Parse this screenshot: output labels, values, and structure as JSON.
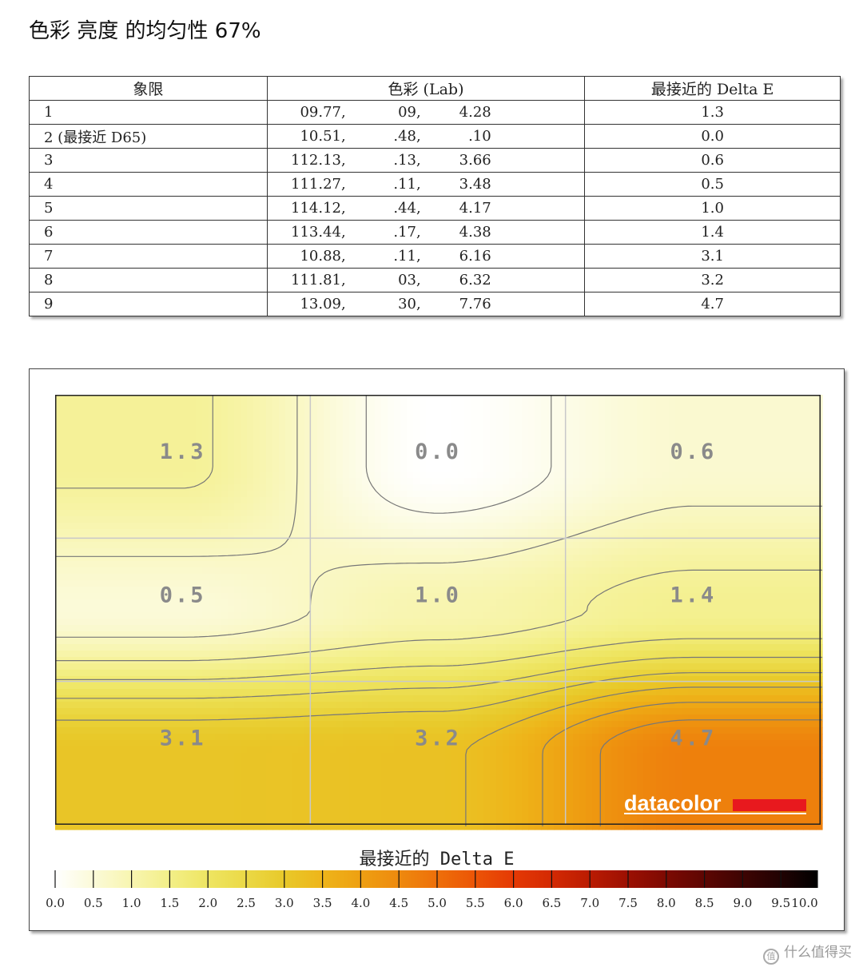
{
  "page": {
    "title": "色彩 亮度 的均匀性 67%"
  },
  "table": {
    "headers": [
      "象限",
      "色彩 (Lab)",
      "最接近的 Delta E"
    ],
    "rows": [
      {
        "quadrant": "1",
        "L": "09.77,",
        "a": "09,",
        "b": "4.28",
        "delta_e": "1.3"
      },
      {
        "quadrant": "2 (最接近 D65)",
        "L": "10.51,",
        "a": ".48,",
        "b": ".10",
        "delta_e": "0.0"
      },
      {
        "quadrant": "3",
        "L": "112.13,",
        "a": ".13,",
        "b": "3.66",
        "delta_e": "0.6"
      },
      {
        "quadrant": "4",
        "L": "111.27,",
        "a": ".11,",
        "b": "3.48",
        "delta_e": "0.5"
      },
      {
        "quadrant": "5",
        "L": "114.12,",
        "a": ".44,",
        "b": "4.17",
        "delta_e": "1.0"
      },
      {
        "quadrant": "6",
        "L": "113.44,",
        "a": ".17,",
        "b": "4.38",
        "delta_e": "1.4"
      },
      {
        "quadrant": "7",
        "L": "10.88,",
        "a": ".11,",
        "b": "6.16",
        "delta_e": "3.1"
      },
      {
        "quadrant": "8",
        "L": "111.81,",
        "a": "03,",
        "b": "6.32",
        "delta_e": "3.2"
      },
      {
        "quadrant": "9",
        "L": "13.09,",
        "a": "30,",
        "b": "7.76",
        "delta_e": "4.7"
      }
    ]
  },
  "chart_data": {
    "type": "heatmap",
    "grid": {
      "rows": 3,
      "cols": 3
    },
    "values": [
      [
        1.3,
        0.0,
        0.6
      ],
      [
        0.5,
        1.0,
        1.4
      ],
      [
        3.1,
        3.2,
        4.7
      ]
    ],
    "labels": [
      [
        "1.3",
        "0.0",
        "0.6"
      ],
      [
        "0.5",
        "1.0",
        "1.4"
      ],
      [
        "3.1",
        "3.2",
        "4.7"
      ]
    ],
    "colorbar": {
      "title": "最接近的 Delta E",
      "min": 0.0,
      "max": 10.0,
      "step": 0.5,
      "tick_labels": [
        "0.0",
        "0.5",
        "1.0",
        "1.5",
        "2.0",
        "2.5",
        "3.0",
        "3.5",
        "4.0",
        "4.5",
        "5.0",
        "5.5",
        "6.0",
        "6.5",
        "7.0",
        "7.5",
        "8.0",
        "8.5",
        "9.0",
        "9.5",
        "10.0"
      ],
      "colors": [
        "#ffffff",
        "#fbfad8",
        "#f8f5b0",
        "#f3ef88",
        "#eee562",
        "#ebd946",
        "#e8c92a",
        "#eeb51a",
        "#eea012",
        "#ee8a0e",
        "#ee700a",
        "#ec5506",
        "#e53a04",
        "#d42a03",
        "#bb1c02",
        "#9d1002",
        "#7e0a02",
        "#5e0602",
        "#3f0402",
        "#220202",
        "#000000"
      ],
      "grid": true
    },
    "brand_logo": "datacolor",
    "brand_color": "#e8191e"
  },
  "watermark": {
    "icon": "zhi-icon",
    "text": "什么值得买"
  }
}
